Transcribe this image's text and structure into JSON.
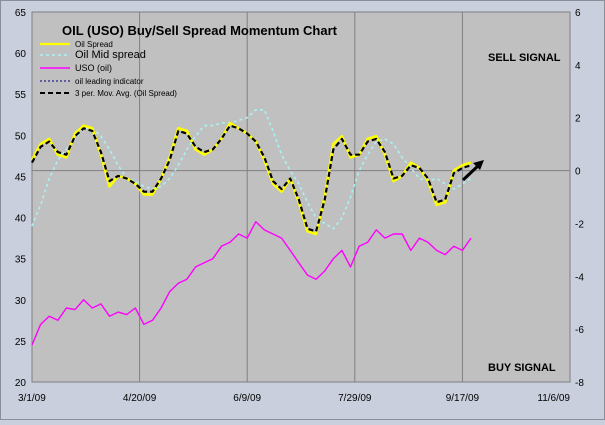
{
  "chart_data": {
    "type": "line",
    "title": "OIL (USO) Buy/Sell Spread Momentum Chart",
    "annotations": [
      "SELL SIGNAL",
      "BUY SIGNAL"
    ],
    "x_ticks": [
      "3/1/09",
      "4/20/09",
      "6/9/09",
      "7/29/09",
      "9/17/09",
      "11/6/09"
    ],
    "xlim": [
      "3/1/09",
      "11/6/09"
    ],
    "y_left_ticks": [
      "20",
      "25",
      "30",
      "35",
      "40",
      "45",
      "50",
      "55",
      "60",
      "65"
    ],
    "y_left_lim": [
      20,
      65
    ],
    "y_right_ticks": [
      "-8",
      "-6",
      "-4",
      "-2",
      "0",
      "2",
      "4",
      "6"
    ],
    "y_right_lim": [
      -8,
      6
    ],
    "grid": true,
    "legend_position": "top-left",
    "series": [
      {
        "name": "Oil Spread",
        "axis": "right",
        "color": "#ffff00",
        "x": [
          "3/1/09",
          "3/5/09",
          "3/9/09",
          "3/13/09",
          "3/17/09",
          "3/21/09",
          "3/25/09",
          "3/29/09",
          "4/2/09",
          "4/6/09",
          "4/10/09",
          "4/14/09",
          "4/18/09",
          "4/22/09",
          "4/26/09",
          "4/30/09",
          "5/4/09",
          "5/8/09",
          "5/12/09",
          "5/16/09",
          "5/20/09",
          "5/24/09",
          "5/28/09",
          "6/1/09",
          "6/5/09",
          "6/9/09",
          "6/13/09",
          "6/17/09",
          "6/21/09",
          "6/25/09",
          "6/29/09",
          "7/3/09",
          "7/7/09",
          "7/11/09",
          "7/15/09",
          "7/19/09",
          "7/23/09",
          "7/27/09",
          "7/31/09",
          "8/4/09",
          "8/8/09",
          "8/12/09",
          "8/16/09",
          "8/20/09",
          "8/24/09",
          "8/28/09",
          "9/1/09",
          "9/5/09",
          "9/9/09",
          "9/13/09",
          "9/17/09",
          "9/21/09"
        ],
        "y": [
          0.4,
          1.0,
          1.2,
          0.6,
          0.5,
          1.4,
          1.7,
          1.6,
          0.6,
          -0.6,
          -0.2,
          -0.3,
          -0.5,
          -0.9,
          -0.9,
          -0.3,
          0.5,
          1.6,
          1.5,
          0.8,
          0.6,
          0.8,
          1.2,
          1.8,
          1.6,
          1.4,
          1.1,
          0.4,
          -0.5,
          -0.8,
          -0.3,
          -1.2,
          -2.3,
          -2.4,
          -1.0,
          1.0,
          1.3,
          0.5,
          0.6,
          1.2,
          1.3,
          0.6,
          -0.4,
          -0.2,
          0.3,
          0.1,
          -0.4,
          -1.3,
          -1.2,
          0.0,
          0.2,
          0.3
        ]
      },
      {
        "name": "Oil Mid spread",
        "axis": "right",
        "color": "#aaf2f2",
        "x": [
          "3/1/09",
          "3/5/09",
          "3/9/09",
          "3/13/09",
          "3/17/09",
          "3/21/09",
          "3/25/09",
          "3/29/09",
          "4/2/09",
          "4/6/09",
          "4/10/09",
          "4/14/09",
          "4/18/09",
          "4/22/09",
          "4/26/09",
          "4/30/09",
          "5/4/09",
          "5/8/09",
          "5/12/09",
          "5/16/09",
          "5/20/09",
          "5/24/09",
          "5/28/09",
          "6/1/09",
          "6/5/09",
          "6/9/09",
          "6/13/09",
          "6/17/09",
          "6/21/09",
          "6/25/09",
          "6/29/09",
          "7/3/09",
          "7/7/09",
          "7/11/09",
          "7/15/09",
          "7/19/09",
          "7/23/09",
          "7/27/09",
          "7/31/09",
          "8/4/09",
          "8/8/09",
          "8/12/09",
          "8/16/09",
          "8/20/09",
          "8/24/09",
          "8/28/09",
          "9/1/09",
          "9/5/09",
          "9/9/09",
          "9/13/09",
          "9/17/09",
          "9/21/09"
        ],
        "y": [
          -2.1,
          -1.3,
          -0.3,
          0.4,
          0.8,
          1.2,
          1.6,
          1.6,
          1.3,
          0.8,
          0.2,
          -0.3,
          -0.4,
          -0.6,
          -0.7,
          -0.6,
          -0.3,
          0.2,
          0.8,
          1.3,
          1.7,
          1.7,
          1.8,
          1.8,
          1.9,
          2.0,
          2.3,
          2.3,
          1.5,
          0.6,
          0.0,
          -0.5,
          -1.2,
          -1.8,
          -2.0,
          -2.2,
          -1.8,
          -1.0,
          0.0,
          0.6,
          1.1,
          1.2,
          1.0,
          0.5,
          0.1,
          -0.3,
          -0.4,
          -0.3,
          -0.5,
          -0.7,
          -0.5,
          -0.3
        ]
      },
      {
        "name": "USO (oil)",
        "axis": "left",
        "color": "#ff00ff",
        "x": [
          "3/1/09",
          "3/5/09",
          "3/9/09",
          "3/13/09",
          "3/17/09",
          "3/21/09",
          "3/25/09",
          "3/29/09",
          "4/2/09",
          "4/6/09",
          "4/10/09",
          "4/14/09",
          "4/18/09",
          "4/22/09",
          "4/26/09",
          "4/30/09",
          "5/4/09",
          "5/8/09",
          "5/12/09",
          "5/16/09",
          "5/20/09",
          "5/24/09",
          "5/28/09",
          "6/1/09",
          "6/5/09",
          "6/9/09",
          "6/13/09",
          "6/17/09",
          "6/21/09",
          "6/25/09",
          "6/29/09",
          "7/3/09",
          "7/7/09",
          "7/11/09",
          "7/15/09",
          "7/19/09",
          "7/23/09",
          "7/27/09",
          "7/31/09",
          "8/4/09",
          "8/8/09",
          "8/12/09",
          "8/16/09",
          "8/20/09",
          "8/24/09",
          "8/28/09",
          "9/1/09",
          "9/5/09",
          "9/9/09",
          "9/13/09",
          "9/17/09",
          "9/21/09"
        ],
        "y": [
          24.5,
          27.0,
          28.0,
          27.5,
          29.0,
          28.8,
          30.0,
          29.0,
          29.5,
          28.0,
          28.5,
          28.2,
          29.0,
          27.0,
          27.5,
          29.0,
          31.0,
          32.0,
          32.5,
          34.0,
          34.5,
          35.0,
          36.5,
          37.0,
          38.0,
          37.5,
          39.5,
          38.5,
          38.0,
          37.5,
          36.0,
          34.5,
          33.0,
          32.5,
          33.5,
          35.0,
          36.0,
          34.0,
          36.5,
          37.0,
          38.5,
          37.5,
          38.0,
          38.0,
          36.0,
          37.5,
          37.0,
          36.0,
          35.5,
          36.5,
          36.0,
          37.5
        ]
      },
      {
        "name": "oil leading indicator",
        "axis": "right",
        "color": "#00007f",
        "x": [],
        "y": []
      },
      {
        "name": "3 per. Mov. Avg. (Oil Spread)",
        "axis": "right",
        "color": "#000000",
        "x": [
          "3/1/09",
          "3/5/09",
          "3/9/09",
          "3/13/09",
          "3/17/09",
          "3/21/09",
          "3/25/09",
          "3/29/09",
          "4/2/09",
          "4/6/09",
          "4/10/09",
          "4/14/09",
          "4/18/09",
          "4/22/09",
          "4/26/09",
          "4/30/09",
          "5/4/09",
          "5/8/09",
          "5/12/09",
          "5/16/09",
          "5/20/09",
          "5/24/09",
          "5/28/09",
          "6/1/09",
          "6/5/09",
          "6/9/09",
          "6/13/09",
          "6/17/09",
          "6/21/09",
          "6/25/09",
          "6/29/09",
          "7/3/09",
          "7/7/09",
          "7/11/09",
          "7/15/09",
          "7/19/09",
          "7/23/09",
          "7/27/09",
          "7/31/09",
          "8/4/09",
          "8/8/09",
          "8/12/09",
          "8/16/09",
          "8/20/09",
          "8/24/09",
          "8/28/09",
          "9/1/09",
          "9/5/09",
          "9/9/09",
          "9/13/09",
          "9/17/09",
          "9/21/09"
        ],
        "y": [
          0.3,
          0.9,
          1.1,
          0.7,
          0.6,
          1.3,
          1.6,
          1.5,
          0.7,
          -0.4,
          -0.2,
          -0.3,
          -0.5,
          -0.8,
          -0.8,
          -0.3,
          0.4,
          1.5,
          1.4,
          0.9,
          0.7,
          0.8,
          1.2,
          1.7,
          1.6,
          1.4,
          1.1,
          0.5,
          -0.4,
          -0.7,
          -0.3,
          -1.1,
          -2.2,
          -2.3,
          -1.1,
          0.8,
          1.2,
          0.6,
          0.6,
          1.1,
          1.2,
          0.7,
          -0.3,
          -0.2,
          0.2,
          0.1,
          -0.3,
          -1.2,
          -1.1,
          -0.1,
          0.1,
          0.2
        ]
      }
    ]
  }
}
